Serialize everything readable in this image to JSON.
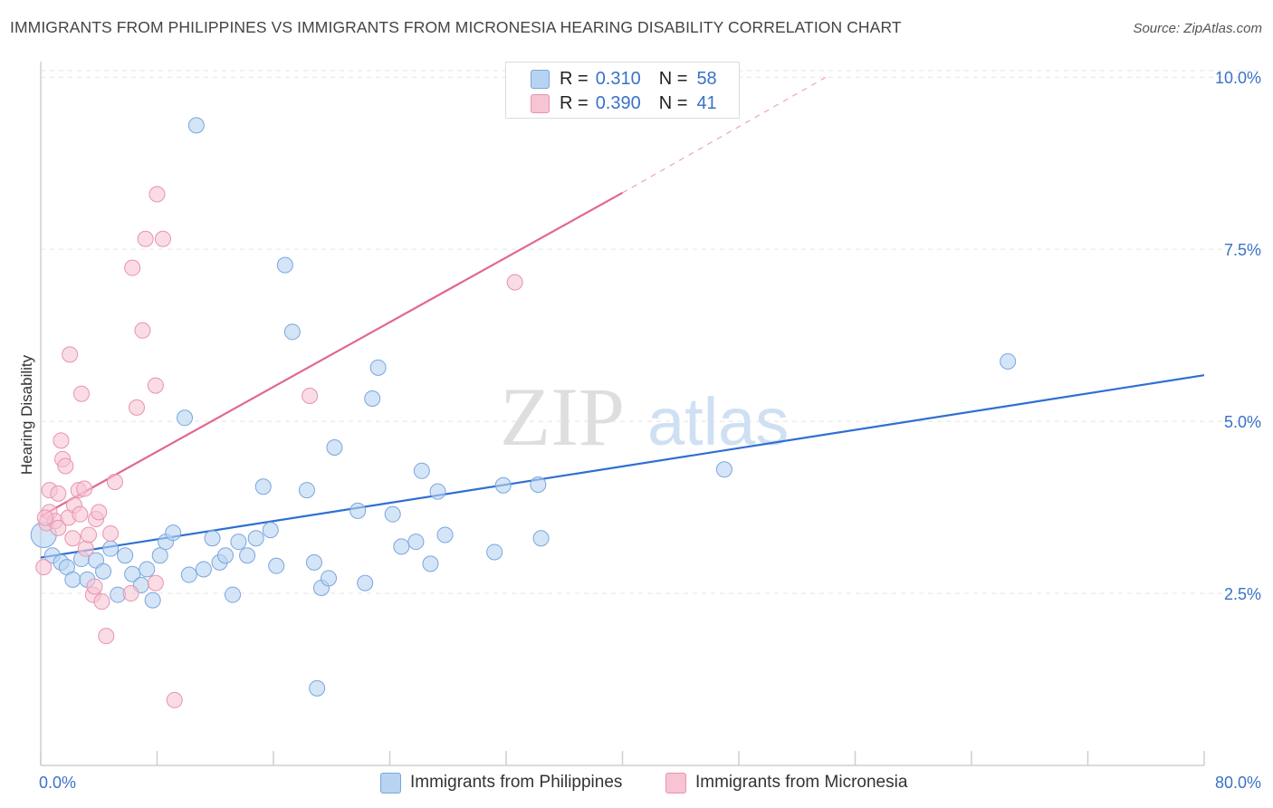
{
  "header": {
    "title": "IMMIGRANTS FROM PHILIPPINES VS IMMIGRANTS FROM MICRONESIA HEARING DISABILITY CORRELATION CHART",
    "source": "Source: ZipAtlas.com"
  },
  "legend": {
    "rows": [
      {
        "r_label": "R =",
        "r_value": "0.310",
        "n_label": "N =",
        "n_value": "58"
      },
      {
        "r_label": "R =",
        "r_value": "0.390",
        "n_label": "N =",
        "n_value": "41"
      }
    ]
  },
  "watermark": {
    "zip": "ZIP",
    "atlas": "atlas"
  },
  "colors": {
    "blue_fill": "#b8d3f2",
    "blue_stroke": "#7aa6dc",
    "blue_line": "#2f6fd0",
    "pink_fill": "#f7c4d3",
    "pink_stroke": "#e992ae",
    "pink_line": "#e06892",
    "tick_label": "#3a72c8",
    "grid": "#e3e3e3"
  },
  "chart_data": {
    "type": "scatter",
    "title": "IMMIGRANTS FROM PHILIPPINES VS IMMIGRANTS FROM MICRONESIA HEARING DISABILITY CORRELATION CHART",
    "xlabel": "",
    "ylabel": "Hearing Disability",
    "xlim": [
      0,
      80
    ],
    "ylim": [
      0,
      10.2
    ],
    "x_tick_labels": [
      "0.0%",
      "80.0%"
    ],
    "y_ticks": [
      2.5,
      5.0,
      7.5,
      10.0
    ],
    "y_tick_labels": [
      "2.5%",
      "5.0%",
      "7.5%",
      "10.0%"
    ],
    "grid": true,
    "legend_position": "top-center",
    "series": [
      {
        "name": "Immigrants from Philippines",
        "color": "blue",
        "R": 0.31,
        "N": 58,
        "trend": {
          "x0": 0,
          "y0": 3.02,
          "x1": 80,
          "y1": 5.67
        },
        "points": [
          [
            0.2,
            3.35
          ],
          [
            0.8,
            3.05
          ],
          [
            1.4,
            2.95
          ],
          [
            1.8,
            2.88
          ],
          [
            2.2,
            2.7
          ],
          [
            2.8,
            3.0
          ],
          [
            3.2,
            2.7
          ],
          [
            3.8,
            2.98
          ],
          [
            4.3,
            2.82
          ],
          [
            4.8,
            3.15
          ],
          [
            5.3,
            2.48
          ],
          [
            5.8,
            3.05
          ],
          [
            6.3,
            2.78
          ],
          [
            6.9,
            2.62
          ],
          [
            7.3,
            2.85
          ],
          [
            7.7,
            2.4
          ],
          [
            8.2,
            3.05
          ],
          [
            8.6,
            3.25
          ],
          [
            9.1,
            3.38
          ],
          [
            9.9,
            5.05
          ],
          [
            10.2,
            2.77
          ],
          [
            10.7,
            9.3
          ],
          [
            11.2,
            2.85
          ],
          [
            11.8,
            3.3
          ],
          [
            12.3,
            2.95
          ],
          [
            12.7,
            3.05
          ],
          [
            13.2,
            2.48
          ],
          [
            13.6,
            3.25
          ],
          [
            14.2,
            3.05
          ],
          [
            14.8,
            3.3
          ],
          [
            15.3,
            4.05
          ],
          [
            15.8,
            3.42
          ],
          [
            16.2,
            2.9
          ],
          [
            16.8,
            7.27
          ],
          [
            17.3,
            6.3
          ],
          [
            18.3,
            4.0
          ],
          [
            18.8,
            2.95
          ],
          [
            19.3,
            2.58
          ],
          [
            19.8,
            2.72
          ],
          [
            20.2,
            4.62
          ],
          [
            21.8,
            3.7
          ],
          [
            22.3,
            2.65
          ],
          [
            22.8,
            5.33
          ],
          [
            23.2,
            5.78
          ],
          [
            24.2,
            3.65
          ],
          [
            24.8,
            3.18
          ],
          [
            25.8,
            3.25
          ],
          [
            26.2,
            4.28
          ],
          [
            26.8,
            2.93
          ],
          [
            27.3,
            3.98
          ],
          [
            27.8,
            3.35
          ],
          [
            31.2,
            3.1
          ],
          [
            31.8,
            4.07
          ],
          [
            34.2,
            4.08
          ],
          [
            34.4,
            3.3
          ],
          [
            47.0,
            4.3
          ],
          [
            66.5,
            5.87
          ],
          [
            19.0,
            1.12
          ]
        ]
      },
      {
        "name": "Immigrants from Micronesia",
        "color": "pink",
        "R": 0.39,
        "N": 41,
        "trend": {
          "x0": 0,
          "y0": 3.62,
          "x1": 40,
          "y1": 8.32
        },
        "trend_dashed_extension": {
          "x0": 40,
          "y0": 8.32,
          "x1": 54,
          "y1": 10.0
        },
        "points": [
          [
            0.2,
            2.88
          ],
          [
            0.4,
            3.52
          ],
          [
            0.6,
            3.68
          ],
          [
            0.6,
            4.0
          ],
          [
            1.0,
            3.55
          ],
          [
            1.2,
            3.95
          ],
          [
            1.4,
            4.72
          ],
          [
            1.5,
            4.45
          ],
          [
            1.7,
            4.35
          ],
          [
            1.9,
            3.6
          ],
          [
            2.0,
            5.97
          ],
          [
            2.2,
            3.3
          ],
          [
            2.3,
            3.78
          ],
          [
            2.6,
            4.0
          ],
          [
            2.7,
            3.65
          ],
          [
            2.8,
            5.4
          ],
          [
            3.0,
            4.02
          ],
          [
            3.1,
            3.15
          ],
          [
            3.3,
            3.35
          ],
          [
            3.6,
            2.48
          ],
          [
            3.7,
            2.6
          ],
          [
            3.8,
            3.58
          ],
          [
            4.0,
            3.68
          ],
          [
            4.2,
            2.38
          ],
          [
            4.5,
            1.88
          ],
          [
            4.8,
            3.37
          ],
          [
            5.1,
            4.12
          ],
          [
            6.2,
            2.5
          ],
          [
            6.3,
            7.23
          ],
          [
            6.6,
            5.2
          ],
          [
            7.0,
            6.32
          ],
          [
            7.2,
            7.65
          ],
          [
            7.9,
            2.65
          ],
          [
            7.9,
            5.52
          ],
          [
            8.0,
            8.3
          ],
          [
            8.4,
            7.65
          ],
          [
            9.2,
            0.95
          ],
          [
            18.5,
            5.37
          ],
          [
            32.6,
            7.02
          ],
          [
            0.3,
            3.6
          ],
          [
            1.2,
            3.45
          ]
        ]
      }
    ]
  },
  "bottom_legend": {
    "items": [
      "Immigrants from Philippines",
      "Immigrants from Micronesia"
    ]
  }
}
